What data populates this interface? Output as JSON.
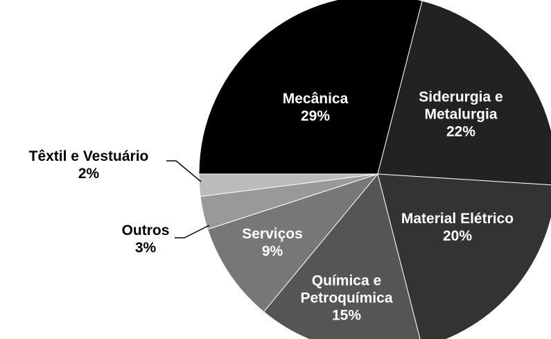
{
  "chart_data": {
    "type": "pie",
    "categories": [
      "Mecânica",
      "Siderurgia e Metalurgia",
      "Material Elétrico",
      "Química e Petroquímica",
      "Serviços",
      "Outros",
      "Têxtil e Vestuário"
    ],
    "values": [
      29,
      22,
      20,
      15,
      9,
      3,
      2
    ],
    "value_labels": [
      "29%",
      "22%",
      "20%",
      "15%",
      "9%",
      "3%",
      "2%"
    ],
    "colors": [
      "#000000",
      "#222222",
      "#333333",
      "#555555",
      "#777777",
      "#999999",
      "#bbbbbb"
    ]
  }
}
